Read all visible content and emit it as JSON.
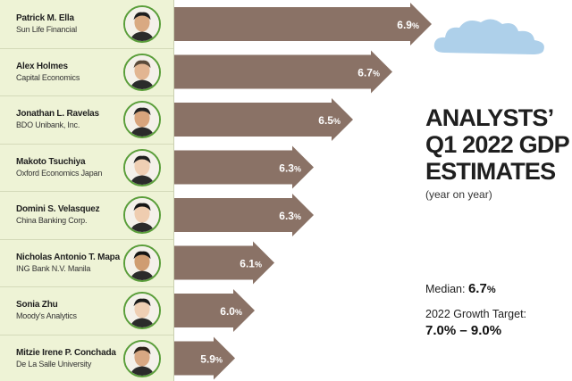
{
  "title_lines": [
    "ANALYSTS’",
    "Q1 2022 GDP",
    "ESTIMATES"
  ],
  "subtitle": "(year on year)",
  "median_label": "Median:",
  "median_value": "6.7",
  "target_label": "2022 Growth Target:",
  "target_value": "7.0% – 9.0%",
  "chart_data": {
    "type": "bar",
    "orientation": "horizontal",
    "unit": "%",
    "categories": [
      "Patrick M. Ella",
      "Alex Holmes",
      "Jonathan L. Ravelas",
      "Makoto Tsuchiya",
      "Domini S. Velasquez",
      "Nicholas Antonio T. Mapa",
      "Sonia Zhu",
      "Mitzie Irene P. Conchada"
    ],
    "organizations": [
      "Sun Life Financial",
      "Capital Economics",
      "BDO Unibank, Inc.",
      "Oxford Economics Japan",
      "China Banking Corp.",
      "ING Bank N.V. Manila",
      "Moody's Analytics",
      "De La Salle University"
    ],
    "values": [
      6.9,
      6.7,
      6.5,
      6.3,
      6.3,
      6.1,
      6.0,
      5.9
    ],
    "labels": [
      "6.9",
      "6.7",
      "6.5",
      "6.3",
      "6.3",
      "6.1",
      "6.0",
      "5.9"
    ]
  },
  "colors": {
    "bar": "#8a7266",
    "panel": "#eef3d6",
    "avatar_border": "#5a9e3a",
    "cloud": "#aed0ea"
  }
}
